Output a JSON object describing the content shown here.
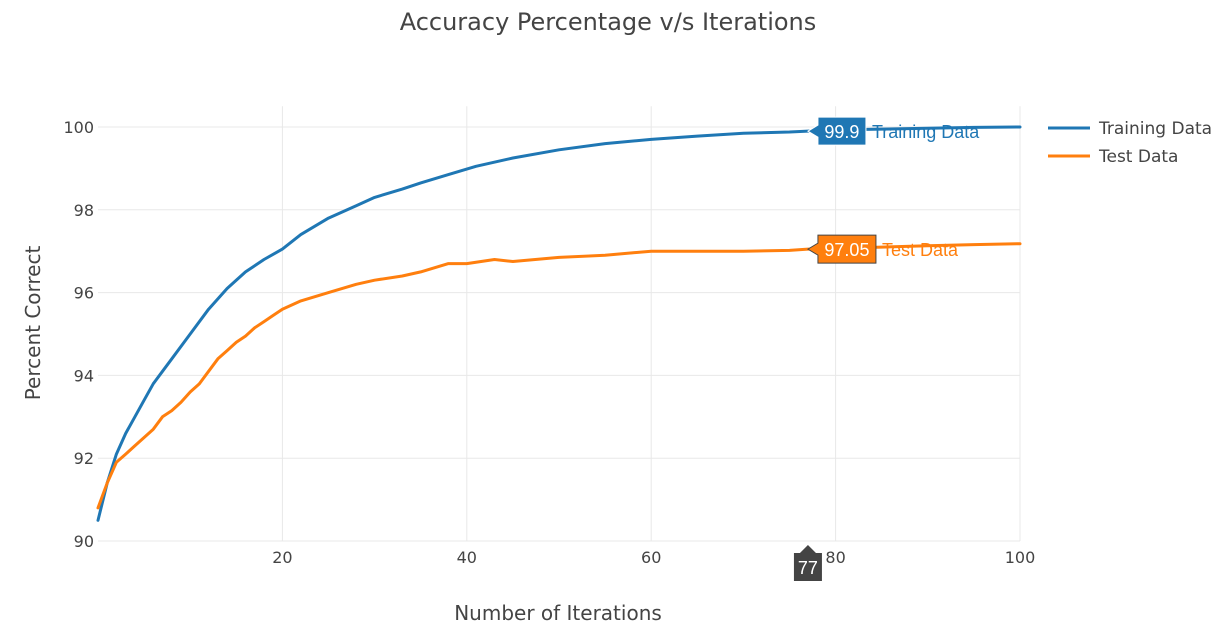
{
  "chart_data": {
    "type": "line",
    "title": "Accuracy Percentage v/s Iterations",
    "xlabel": "Number of Iterations",
    "ylabel": "Percent Correct",
    "xlim": [
      0,
      100
    ],
    "ylim": [
      90,
      100.5
    ],
    "x_ticks": [
      20,
      40,
      60,
      80,
      100
    ],
    "y_ticks": [
      90,
      92,
      94,
      96,
      98,
      100
    ],
    "grid": true,
    "legend_position": "top-right",
    "series": [
      {
        "name": "Training Data",
        "color": "#1f77b4",
        "x": [
          0,
          1,
          2,
          3,
          4,
          5,
          6,
          7,
          8,
          10,
          12,
          14,
          16,
          18,
          20,
          22,
          25,
          28,
          30,
          33,
          35,
          38,
          41,
          45,
          50,
          55,
          60,
          65,
          70,
          75,
          77,
          80,
          85,
          90,
          95,
          100
        ],
        "y": [
          90.5,
          91.4,
          92.1,
          92.6,
          93.0,
          93.4,
          93.8,
          94.1,
          94.4,
          95.0,
          95.6,
          96.1,
          96.5,
          96.8,
          97.05,
          97.4,
          97.8,
          98.1,
          98.3,
          98.5,
          98.65,
          98.85,
          99.05,
          99.25,
          99.45,
          99.6,
          99.7,
          99.78,
          99.85,
          99.88,
          99.9,
          99.93,
          99.95,
          99.97,
          99.99,
          100.0
        ]
      },
      {
        "name": "Test Data",
        "color": "#ff7f0e",
        "x": [
          0,
          1,
          2,
          3,
          4,
          5,
          6,
          7,
          8,
          9,
          10,
          11,
          12,
          13,
          14,
          15,
          16,
          17,
          18,
          19,
          20,
          22,
          25,
          28,
          30,
          33,
          35,
          38,
          40,
          43,
          45,
          50,
          55,
          60,
          65,
          70,
          75,
          77,
          80,
          85,
          90,
          95,
          100
        ],
        "y": [
          90.8,
          91.4,
          91.9,
          92.1,
          92.3,
          92.5,
          92.7,
          93.0,
          93.15,
          93.35,
          93.6,
          93.8,
          94.1,
          94.4,
          94.6,
          94.8,
          94.95,
          95.15,
          95.3,
          95.45,
          95.6,
          95.8,
          96.0,
          96.2,
          96.3,
          96.4,
          96.5,
          96.7,
          96.7,
          96.8,
          96.75,
          96.85,
          96.9,
          97.0,
          97.0,
          97.0,
          97.02,
          97.05,
          97.07,
          97.1,
          97.13,
          97.16,
          97.18
        ]
      }
    ],
    "hover": {
      "x": 77,
      "x_label": "77",
      "points": [
        {
          "series": "Training Data",
          "value": 99.9,
          "label": "99.9"
        },
        {
          "series": "Test Data",
          "value": 97.05,
          "label": "97.05"
        }
      ]
    }
  }
}
